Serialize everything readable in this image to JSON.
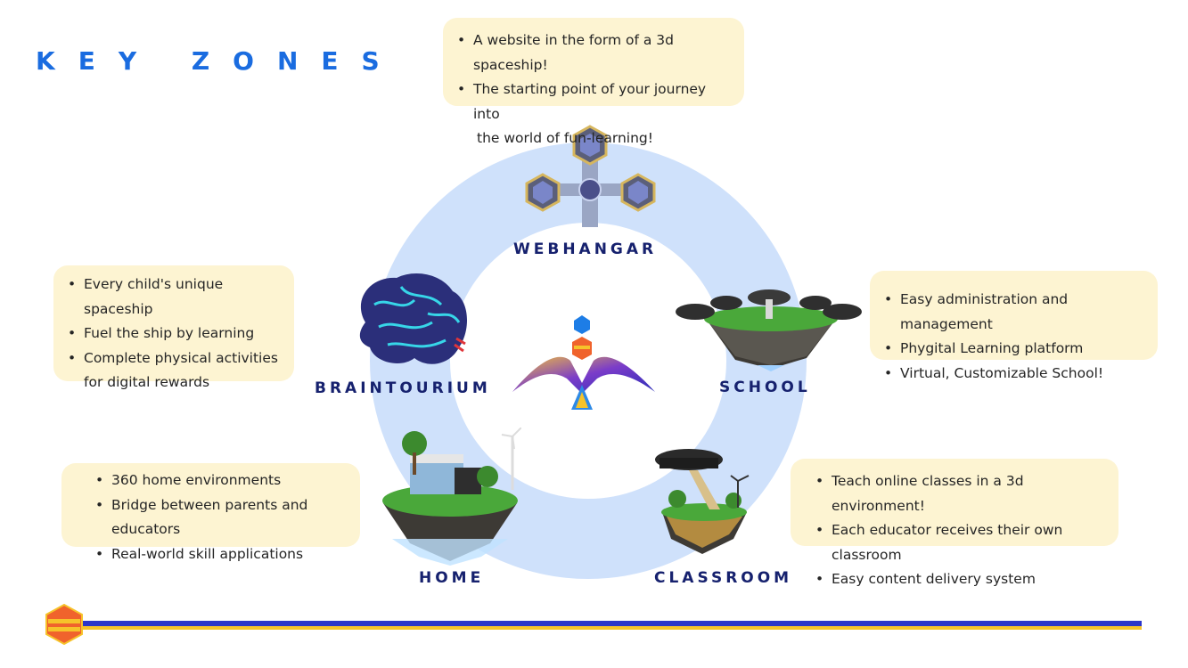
{
  "title": "KEY ZONES",
  "zones": {
    "webhangar": {
      "label": "WEBHANGAR",
      "bullets": [
        "A website in the form of a 3d spaceship!",
        "The starting point of your journey into",
        "the world of fun-learning!"
      ]
    },
    "braintourium": {
      "label": "BRAINTOURIUM",
      "bullets": [
        "Every child's unique spaceship",
        "Fuel the ship by learning",
        "Complete physical activities",
        "for digital rewards"
      ]
    },
    "school": {
      "label": "SCHOOL",
      "bullets": [
        "Easy administration and management",
        "Phygital Learning platform",
        "Virtual, Customizable School!"
      ]
    },
    "home": {
      "label": "HOME",
      "bullets": [
        "360 home environments",
        "Bridge between parents and educators",
        "Real-world skill applications"
      ]
    },
    "classroom": {
      "label": "CLASSROOM",
      "bullets": [
        "Teach online classes in a 3d environment!",
        "Each educator receives their own classroom",
        "Easy content delivery system"
      ]
    }
  },
  "colors": {
    "title": "#1a6ce0",
    "label": "#16216e",
    "ring": "#cfe1fb",
    "box": "#fdf4d2",
    "bar_blue": "#2b35c9",
    "bar_yellow": "#f6c32a"
  }
}
